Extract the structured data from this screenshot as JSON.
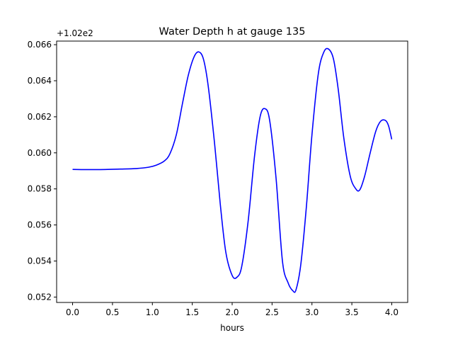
{
  "chart_data": {
    "type": "line",
    "title": "Water Depth h at gauge 135",
    "xlabel": "hours",
    "ylabel": "",
    "offset_label": "+1.02e2",
    "xlim": [
      -0.2,
      4.2
    ],
    "ylim": [
      0.0517,
      0.0662
    ],
    "x_ticks": [
      0.0,
      0.5,
      1.0,
      1.5,
      2.0,
      2.5,
      3.0,
      3.5,
      4.0
    ],
    "x_tick_labels": [
      "0.0",
      "0.5",
      "1.0",
      "1.5",
      "2.0",
      "2.5",
      "3.0",
      "3.5",
      "4.0"
    ],
    "y_ticks": [
      0.052,
      0.054,
      0.056,
      0.058,
      0.06,
      0.062,
      0.064,
      0.066
    ],
    "y_tick_labels": [
      "0.052",
      "0.054",
      "0.056",
      "0.058",
      "0.060",
      "0.062",
      "0.064",
      "0.066"
    ],
    "grid": false,
    "series": [
      {
        "color": "#0000ff",
        "x": [
          0.0,
          0.3,
          0.6,
          0.8,
          0.95,
          1.05,
          1.15,
          1.22,
          1.3,
          1.38,
          1.45,
          1.52,
          1.58,
          1.64,
          1.7,
          1.78,
          1.85,
          1.92,
          2.0,
          2.06,
          2.12,
          2.2,
          2.28,
          2.35,
          2.41,
          2.47,
          2.55,
          2.63,
          2.7,
          2.76,
          2.8,
          2.86,
          2.93,
          3.0,
          3.08,
          3.15,
          3.21,
          3.27,
          3.33,
          3.4,
          3.48,
          3.55,
          3.6,
          3.66,
          3.73,
          3.8,
          3.86,
          3.92,
          3.96,
          4.0
        ],
        "values": [
          0.05908,
          0.05907,
          0.0591,
          0.05913,
          0.0592,
          0.05932,
          0.05955,
          0.05995,
          0.061,
          0.0628,
          0.0643,
          0.0653,
          0.0656,
          0.0652,
          0.0637,
          0.0605,
          0.0572,
          0.0545,
          0.0532,
          0.0531,
          0.0537,
          0.0562,
          0.0598,
          0.062,
          0.06245,
          0.0618,
          0.0586,
          0.054,
          0.0528,
          0.05235,
          0.0524,
          0.0538,
          0.057,
          0.061,
          0.0644,
          0.0656,
          0.06575,
          0.0652,
          0.0635,
          0.0608,
          0.0587,
          0.058,
          0.05795,
          0.0587,
          0.06,
          0.0612,
          0.06175,
          0.0618,
          0.0615,
          0.06075
        ]
      }
    ]
  }
}
